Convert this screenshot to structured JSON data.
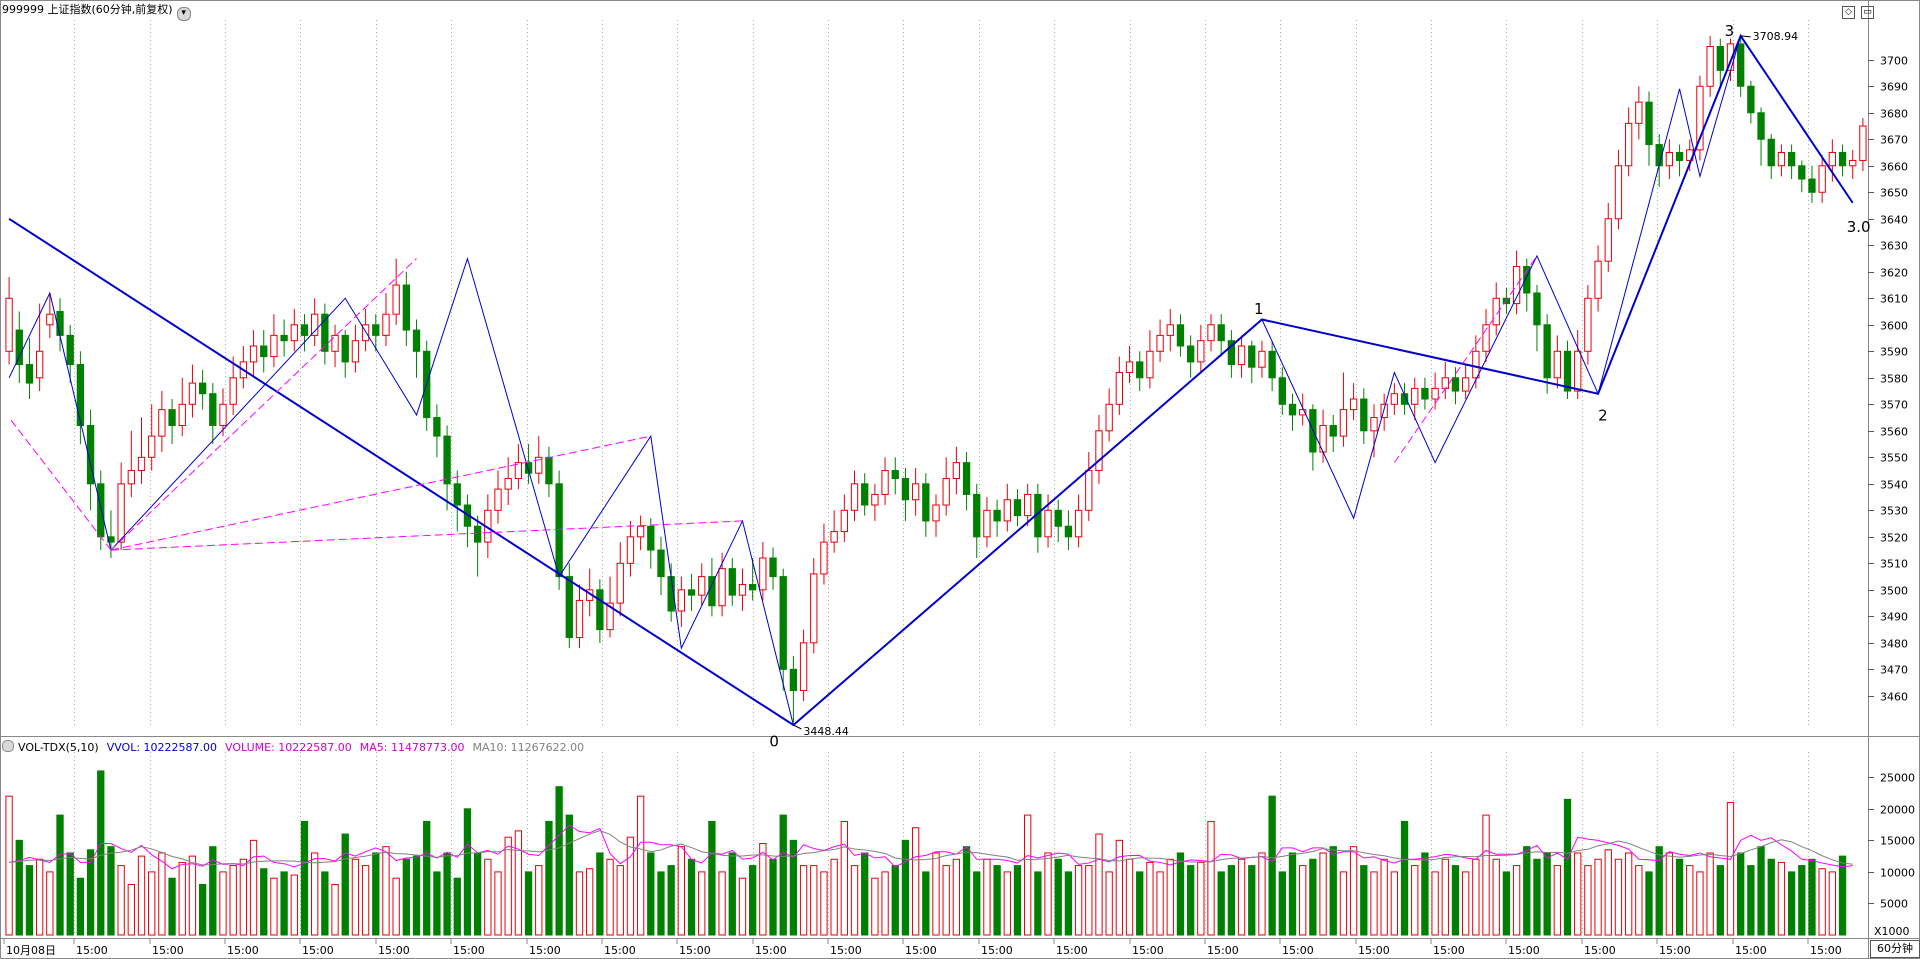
{
  "header": {
    "title": "999999 上证指数(60分钟,前复权)",
    "dropdown_icon": "chevron-down-icon",
    "icons": [
      "diamond-icon",
      "window-icon"
    ]
  },
  "volume_header": {
    "indicator": "VOL-TDX(5,10)",
    "vvol": "VVOL: 10222587.00",
    "volume": "VOLUME: 10222587.00",
    "ma5": "MA5: 11478773.00",
    "ma10": "MA10: 11267622.00"
  },
  "period_label": "60分钟",
  "colors": {
    "up": "#e8000b",
    "down": "#008000",
    "wave": "#0000cc",
    "fan": "#ff00ff",
    "ma5": "#ff00ff",
    "ma10": "#808080",
    "grid": "#aaaaaa"
  },
  "chart_data": {
    "type": "candlestick",
    "price_axis": {
      "range": [
        3449,
        3715
      ],
      "ticks": [
        3460,
        3470,
        3480,
        3490,
        3500,
        3510,
        3520,
        3530,
        3540,
        3550,
        3560,
        3570,
        3580,
        3590,
        3600,
        3610,
        3620,
        3630,
        3640,
        3650,
        3660,
        3670,
        3680,
        3690,
        3700
      ]
    },
    "volume_axis": {
      "range": [
        0,
        29000
      ],
      "ticks": [
        5000,
        10000,
        15000,
        20000,
        25000
      ],
      "unit_label": "X1000"
    },
    "time_labels": [
      "10月08日",
      "15:00",
      "15:00",
      "15:00",
      "15:00",
      "15:00",
      "15:00",
      "15:00",
      "15:00",
      "15:00",
      "15:00",
      "15:00",
      "15:00",
      "15:00",
      "15:00",
      "15:00",
      "15:00",
      "15:00",
      "15:00",
      "15:00",
      "15:00",
      "15:00",
      "15:00",
      "15:00",
      "15:00",
      "15:00"
    ],
    "candles": [
      [
        3590,
        3610,
        3618,
        3585
      ],
      [
        3598,
        3585,
        3605,
        3578
      ],
      [
        3585,
        3578,
        3595,
        3572
      ],
      [
        3580,
        3590,
        3608,
        3575
      ],
      [
        3600,
        3604,
        3612,
        3595
      ],
      [
        3605,
        3596,
        3610,
        3590
      ],
      [
        3596,
        3585,
        3600,
        3578
      ],
      [
        3585,
        3562,
        3590,
        3555
      ],
      [
        3562,
        3540,
        3568,
        3530
      ],
      [
        3540,
        3520,
        3545,
        3515
      ],
      [
        3520,
        3518,
        3530,
        3512
      ],
      [
        3518,
        3540,
        3548,
        3515
      ],
      [
        3540,
        3545,
        3560,
        3535
      ],
      [
        3545,
        3550,
        3565,
        3540
      ],
      [
        3550,
        3558,
        3570,
        3545
      ],
      [
        3558,
        3568,
        3575,
        3552
      ],
      [
        3568,
        3562,
        3572,
        3555
      ],
      [
        3562,
        3570,
        3580,
        3558
      ],
      [
        3570,
        3578,
        3585,
        3565
      ],
      [
        3578,
        3574,
        3583,
        3568
      ],
      [
        3574,
        3562,
        3578,
        3555
      ],
      [
        3562,
        3570,
        3576,
        3558
      ],
      [
        3570,
        3580,
        3588,
        3566
      ],
      [
        3580,
        3586,
        3592,
        3576
      ],
      [
        3586,
        3592,
        3598,
        3580
      ],
      [
        3592,
        3588,
        3598,
        3582
      ],
      [
        3588,
        3596,
        3604,
        3584
      ],
      [
        3596,
        3594,
        3602,
        3588
      ],
      [
        3594,
        3600,
        3606,
        3590
      ],
      [
        3600,
        3596,
        3604,
        3590
      ],
      [
        3596,
        3604,
        3610,
        3592
      ],
      [
        3604,
        3590,
        3608,
        3585
      ],
      [
        3590,
        3596,
        3600,
        3584
      ],
      [
        3596,
        3586,
        3598,
        3580
      ],
      [
        3586,
        3594,
        3600,
        3582
      ],
      [
        3594,
        3600,
        3606,
        3590
      ],
      [
        3600,
        3596,
        3604,
        3590
      ],
      [
        3596,
        3604,
        3612,
        3592
      ],
      [
        3604,
        3615,
        3625,
        3600
      ],
      [
        3615,
        3598,
        3620,
        3592
      ],
      [
        3598,
        3590,
        3602,
        3580
      ],
      [
        3590,
        3565,
        3594,
        3560
      ],
      [
        3565,
        3558,
        3570,
        3550
      ],
      [
        3558,
        3540,
        3562,
        3530
      ],
      [
        3540,
        3532,
        3545,
        3522
      ],
      [
        3532,
        3524,
        3536,
        3516
      ],
      [
        3524,
        3518,
        3528,
        3505
      ],
      [
        3518,
        3530,
        3536,
        3512
      ],
      [
        3530,
        3538,
        3545,
        3525
      ],
      [
        3538,
        3542,
        3550,
        3532
      ],
      [
        3542,
        3548,
        3555,
        3538
      ],
      [
        3548,
        3544,
        3555,
        3540
      ],
      [
        3544,
        3550,
        3558,
        3540
      ],
      [
        3550,
        3540,
        3554,
        3535
      ],
      [
        3540,
        3505,
        3545,
        3500
      ],
      [
        3505,
        3482,
        3510,
        3478
      ],
      [
        3482,
        3496,
        3502,
        3478
      ],
      [
        3496,
        3500,
        3508,
        3490
      ],
      [
        3500,
        3485,
        3504,
        3480
      ],
      [
        3485,
        3495,
        3505,
        3482
      ],
      [
        3495,
        3510,
        3518,
        3490
      ],
      [
        3510,
        3520,
        3526,
        3505
      ],
      [
        3520,
        3524,
        3528,
        3515
      ],
      [
        3524,
        3515,
        3527,
        3508
      ],
      [
        3515,
        3505,
        3520,
        3498
      ],
      [
        3505,
        3492,
        3510,
        3488
      ],
      [
        3492,
        3500,
        3505,
        3486
      ],
      [
        3500,
        3498,
        3506,
        3492
      ],
      [
        3498,
        3505,
        3510,
        3494
      ],
      [
        3505,
        3494,
        3512,
        3490
      ],
      [
        3494,
        3508,
        3514,
        3490
      ],
      [
        3508,
        3498,
        3512,
        3494
      ],
      [
        3498,
        3502,
        3508,
        3492
      ],
      [
        3502,
        3500,
        3512,
        3496
      ],
      [
        3500,
        3512,
        3518,
        3496
      ],
      [
        3512,
        3505,
        3516,
        3500
      ],
      [
        3505,
        3470,
        3508,
        3462
      ],
      [
        3470,
        3462,
        3475,
        3450
      ],
      [
        3462,
        3480,
        3485,
        3458
      ],
      [
        3480,
        3506,
        3512,
        3476
      ],
      [
        3506,
        3518,
        3525,
        3502
      ],
      [
        3518,
        3522,
        3530,
        3514
      ],
      [
        3522,
        3530,
        3536,
        3518
      ],
      [
        3530,
        3540,
        3545,
        3526
      ],
      [
        3540,
        3532,
        3544,
        3528
      ],
      [
        3532,
        3536,
        3540,
        3526
      ],
      [
        3536,
        3545,
        3550,
        3532
      ],
      [
        3545,
        3542,
        3550,
        3536
      ],
      [
        3542,
        3534,
        3546,
        3526
      ],
      [
        3534,
        3540,
        3546,
        3528
      ],
      [
        3540,
        3526,
        3544,
        3520
      ],
      [
        3526,
        3532,
        3536,
        3520
      ],
      [
        3532,
        3542,
        3550,
        3528
      ],
      [
        3542,
        3548,
        3554,
        3536
      ],
      [
        3548,
        3536,
        3552,
        3530
      ],
      [
        3536,
        3520,
        3540,
        3512
      ],
      [
        3520,
        3530,
        3535,
        3516
      ],
      [
        3530,
        3526,
        3534,
        3520
      ],
      [
        3526,
        3534,
        3540,
        3522
      ],
      [
        3534,
        3528,
        3538,
        3524
      ],
      [
        3528,
        3536,
        3540,
        3524
      ],
      [
        3536,
        3520,
        3540,
        3514
      ],
      [
        3520,
        3530,
        3536,
        3516
      ],
      [
        3530,
        3524,
        3534,
        3518
      ],
      [
        3524,
        3520,
        3530,
        3515
      ],
      [
        3520,
        3530,
        3536,
        3516
      ],
      [
        3530,
        3545,
        3552,
        3526
      ],
      [
        3545,
        3560,
        3566,
        3540
      ],
      [
        3560,
        3570,
        3576,
        3556
      ],
      [
        3570,
        3582,
        3588,
        3566
      ],
      [
        3582,
        3586,
        3592,
        3578
      ],
      [
        3586,
        3580,
        3590,
        3575
      ],
      [
        3580,
        3590,
        3598,
        3576
      ],
      [
        3590,
        3596,
        3602,
        3586
      ],
      [
        3596,
        3600,
        3606,
        3590
      ],
      [
        3600,
        3592,
        3604,
        3588
      ],
      [
        3592,
        3586,
        3596,
        3580
      ],
      [
        3586,
        3594,
        3600,
        3582
      ],
      [
        3594,
        3600,
        3604,
        3590
      ],
      [
        3600,
        3594,
        3604,
        3588
      ],
      [
        3594,
        3585,
        3598,
        3580
      ],
      [
        3585,
        3592,
        3596,
        3580
      ],
      [
        3592,
        3584,
        3594,
        3578
      ],
      [
        3584,
        3590,
        3594,
        3580
      ],
      [
        3590,
        3580,
        3594,
        3575
      ],
      [
        3580,
        3570,
        3584,
        3566
      ],
      [
        3570,
        3566,
        3574,
        3560
      ],
      [
        3566,
        3568,
        3574,
        3562
      ],
      [
        3568,
        3552,
        3570,
        3545
      ],
      [
        3552,
        3562,
        3568,
        3548
      ],
      [
        3562,
        3558,
        3566,
        3552
      ],
      [
        3558,
        3568,
        3582,
        3554
      ],
      [
        3568,
        3572,
        3578,
        3564
      ],
      [
        3572,
        3560,
        3576,
        3555
      ],
      [
        3560,
        3565,
        3570,
        3550
      ],
      [
        3565,
        3570,
        3574,
        3560
      ],
      [
        3570,
        3574,
        3578,
        3566
      ],
      [
        3574,
        3570,
        3578,
        3566
      ],
      [
        3570,
        3576,
        3580,
        3564
      ],
      [
        3576,
        3572,
        3580,
        3568
      ],
      [
        3572,
        3576,
        3582,
        3568
      ],
      [
        3576,
        3580,
        3586,
        3572
      ],
      [
        3580,
        3575,
        3584,
        3570
      ],
      [
        3575,
        3580,
        3585,
        3572
      ],
      [
        3580,
        3590,
        3596,
        3576
      ],
      [
        3590,
        3600,
        3606,
        3586
      ],
      [
        3600,
        3610,
        3616,
        3596
      ],
      [
        3610,
        3608,
        3614,
        3604
      ],
      [
        3608,
        3622,
        3628,
        3604
      ],
      [
        3622,
        3612,
        3625,
        3605
      ],
      [
        3612,
        3600,
        3615,
        3590
      ],
      [
        3600,
        3580,
        3604,
        3574
      ],
      [
        3580,
        3590,
        3596,
        3576
      ],
      [
        3590,
        3575,
        3594,
        3572
      ],
      [
        3575,
        3590,
        3598,
        3572
      ],
      [
        3590,
        3610,
        3615,
        3585
      ],
      [
        3610,
        3624,
        3630,
        3605
      ],
      [
        3624,
        3640,
        3646,
        3620
      ],
      [
        3640,
        3660,
        3666,
        3636
      ],
      [
        3660,
        3676,
        3682,
        3656
      ],
      [
        3676,
        3684,
        3690,
        3670
      ],
      [
        3684,
        3668,
        3688,
        3660
      ],
      [
        3668,
        3660,
        3672,
        3652
      ],
      [
        3660,
        3665,
        3670,
        3655
      ],
      [
        3665,
        3662,
        3668,
        3656
      ],
      [
        3662,
        3666,
        3670,
        3658
      ],
      [
        3666,
        3690,
        3694,
        3662
      ],
      [
        3690,
        3705,
        3709,
        3686
      ],
      [
        3705,
        3696,
        3708,
        3690
      ],
      [
        3696,
        3706,
        3708,
        3692
      ],
      [
        3706,
        3690,
        3708,
        3686
      ],
      [
        3690,
        3680,
        3692,
        3676
      ],
      [
        3680,
        3670,
        3682,
        3660
      ],
      [
        3670,
        3660,
        3672,
        3655
      ],
      [
        3660,
        3665,
        3668,
        3656
      ],
      [
        3665,
        3660,
        3668,
        3655
      ],
      [
        3660,
        3655,
        3662,
        3650
      ],
      [
        3655,
        3650,
        3660,
        3646
      ],
      [
        3650,
        3660,
        3664,
        3646
      ],
      [
        3660,
        3665,
        3670,
        3654
      ],
      [
        3665,
        3660,
        3668,
        3656
      ],
      [
        3660,
        3662,
        3666,
        3655
      ],
      [
        3662,
        3675,
        3678,
        3658
      ]
    ],
    "volume": [
      2200,
      1500,
      1100,
      1200,
      1000,
      1900,
      1300,
      900,
      1350,
      2600,
      1400,
      1100,
      800,
      1250,
      1000,
      1300,
      900,
      1150,
      1250,
      800,
      1400,
      1000,
      1100,
      1200,
      1500,
      1050,
      900,
      1000,
      950,
      1800,
      1300,
      1000,
      800,
      1600,
      1200,
      1100,
      1300,
      1400,
      900,
      1200,
      1250,
      1800,
      1000,
      1300,
      900,
      2000,
      1300,
      1200,
      1000,
      1550,
      1650,
      1000,
      1100,
      1800,
      2350,
      1900,
      1000,
      1050,
      1300,
      1200,
      1100,
      1550,
      2200,
      1300,
      1000,
      1100,
      1400,
      1200,
      1000,
      1800,
      1000,
      1300,
      900,
      1100,
      1450,
      1200,
      1900,
      1500,
      1100,
      1100,
      1000,
      1200,
      1800,
      1100,
      1300,
      900,
      1000,
      1100,
      1500,
      1700,
      1000,
      1300,
      1100,
      1200,
      1400,
      1000,
      1200,
      1100,
      1000,
      1100,
      1900,
      1000,
      1300,
      1200,
      1000,
      1100,
      1100,
      1600,
      1000,
      1500,
      1200,
      1000,
      1150,
      1000,
      1200,
      1300,
      1100,
      1150,
      1800,
      1000,
      1100,
      1200,
      1100,
      1300,
      2200,
      1000,
      1300,
      1100,
      1200,
      1300,
      1400,
      1000,
      1400,
      1100,
      1000,
      1200,
      1000,
      1800,
      1100,
      1300,
      1000,
      1200,
      1100,
      1000,
      1200,
      1900,
      1200,
      1000,
      1100,
      1400,
      1200,
      1300,
      1100,
      2150,
      1300,
      1100,
      1200,
      1350,
      1200,
      1300,
      1100,
      1000,
      1400,
      1300,
      1200,
      1100,
      1000,
      1300,
      1100,
      2100,
      1300,
      1100,
      1400,
      1200,
      1150,
      1000,
      1100,
      1200,
      1050,
      1000,
      1250
    ],
    "ma5": [
      1150,
      1180,
      1230,
      1190,
      1150,
      1280,
      1290,
      1150,
      1150,
      1450,
      1450,
      1370,
      1310,
      1420,
      1270,
      1170,
      1050,
      1120,
      1130,
      1090,
      1190,
      1120,
      1130,
      1100,
      1240,
      1250,
      1150,
      1130,
      1080,
      1140,
      1210,
      1210,
      1170,
      1300,
      1250,
      1320,
      1380,
      1320,
      1180,
      1220,
      1230,
      1300,
      1220,
      1310,
      1230,
      1440,
      1300,
      1340,
      1280,
      1410,
      1360,
      1280,
      1260,
      1420,
      1580,
      1740,
      1640,
      1620,
      1690,
      1290,
      1130,
      1240,
      1470,
      1470,
      1430,
      1430,
      1400,
      1200,
      1140,
      1300,
      1280,
      1340,
      1200,
      1220,
      1310,
      1190,
      1310,
      1230,
      1430,
      1370,
      1340,
      1400,
      1440,
      1260,
      1300,
      1220,
      1240,
      1080,
      1160,
      1240,
      1260,
      1320,
      1320,
      1280,
      1400,
      1200,
      1200,
      1200,
      1180,
      1140,
      1260,
      1220,
      1260,
      1300,
      1280,
      1120,
      1140,
      1200,
      1160,
      1240,
      1260,
      1260,
      1170,
      1150,
      1110,
      1160,
      1190,
      1180,
      1160,
      1280,
      1270,
      1210,
      1230,
      1240,
      1160,
      1380,
      1380,
      1320,
      1380,
      1380,
      1280,
      1320,
      1320,
      1220,
      1240,
      1180,
      1140,
      1200,
      1200,
      1220,
      1240,
      1280,
      1260,
      1220,
      1200,
      1340,
      1280,
      1280,
      1280,
      1340,
      1420,
      1220,
      1300,
      1200,
      1550,
      1520,
      1500,
      1460,
      1420,
      1360,
      1200,
      1190,
      1180,
      1320,
      1280,
      1260,
      1300,
      1240,
      1220,
      1200,
      1500,
      1580,
      1500,
      1540,
      1430,
      1330,
      1200,
      1180,
      1140,
      1110,
      1080,
      1100
    ]
  },
  "annotations": {
    "wave_labels": [
      "0",
      "1",
      "2",
      "3",
      "3.0"
    ],
    "price_labels": [
      "3448.44",
      "3708.94"
    ]
  }
}
